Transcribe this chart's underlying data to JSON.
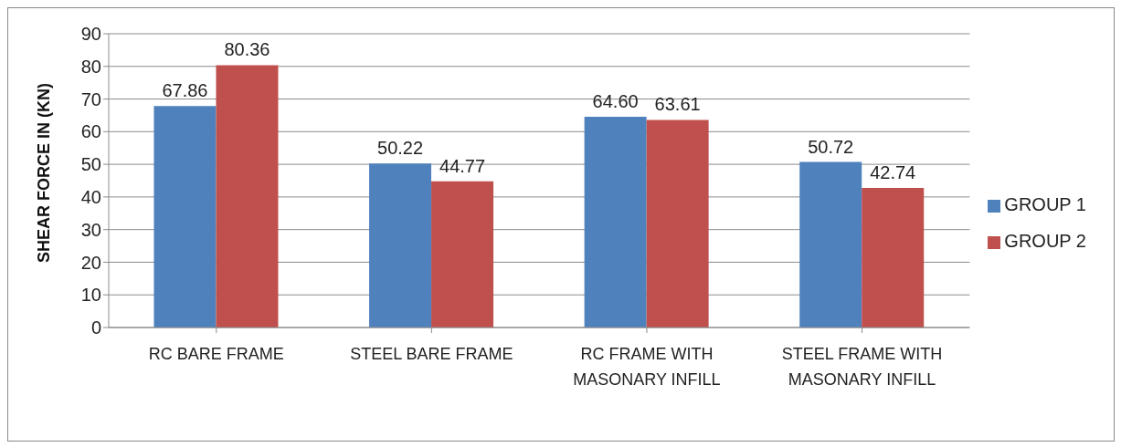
{
  "chart_data": {
    "type": "bar",
    "ylabel": "SHEAR FORCE IN (KN)",
    "categories": [
      "RC BARE FRAME",
      "STEEL BARE FRAME",
      "RC FRAME WITH MASONARY INFILL",
      "STEEL FRAME WITH MASONARY INFILL"
    ],
    "series": [
      {
        "name": "GROUP 1",
        "color": "#4f81bd",
        "values": [
          67.86,
          50.22,
          64.6,
          50.72
        ],
        "value_labels": [
          "67.86",
          "50.22",
          "64.60",
          "50.72"
        ]
      },
      {
        "name": "GROUP 2",
        "color": "#c0504d",
        "values": [
          80.36,
          44.77,
          63.61,
          42.74
        ],
        "value_labels": [
          "80.36",
          "44.77",
          "63.61",
          "42.74"
        ]
      }
    ],
    "ylim": [
      0,
      90
    ],
    "yticks": [
      0,
      10,
      20,
      30,
      40,
      50,
      60,
      70,
      80,
      90
    ],
    "grid": "y",
    "legend": "right"
  }
}
